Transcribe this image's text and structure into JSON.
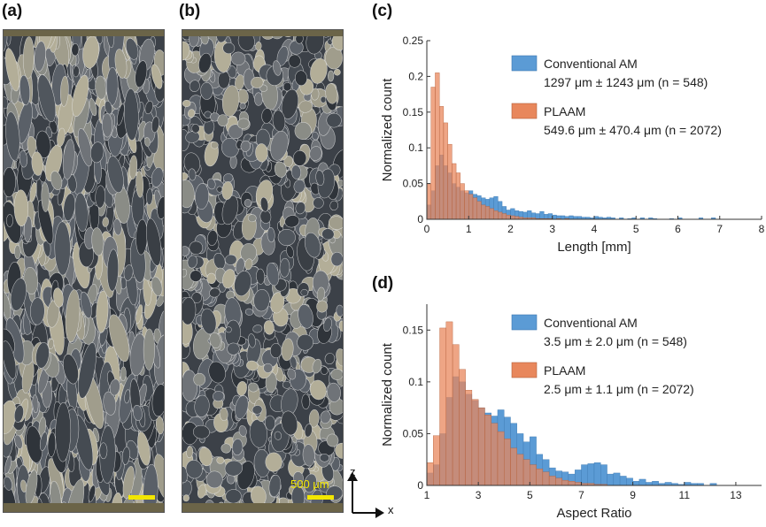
{
  "panels": {
    "a": "(a)",
    "b": "(b)",
    "c": "(c)",
    "d": "(d)"
  },
  "scale_bar": {
    "label": "500 μm",
    "color": "#f2e600"
  },
  "axes_indicator": {
    "z": "z",
    "x": "x"
  },
  "colors": {
    "conventional": "#5b9bd5",
    "plaam": "#e8875c"
  },
  "chart_data": [
    {
      "type": "bar",
      "panel": "(c)",
      "xlabel": "Length [mm]",
      "ylabel": "Normalized count",
      "xlim": [
        0,
        8
      ],
      "ylim": [
        0,
        0.25
      ],
      "xticks": [
        "0",
        "1",
        "2",
        "3",
        "4",
        "5",
        "6",
        "7",
        "8"
      ],
      "yticks": [
        "0",
        "0.05",
        "0.1",
        "0.15",
        "0.2",
        "0.25"
      ],
      "bin_start": 0,
      "bin_width": 0.1,
      "legend": {
        "position": "top-right"
      },
      "series": [
        {
          "name": "Conventional AM",
          "stats": "1297 μm ± 1243 μm (n = 548)",
          "values": [
            0.02,
            0.04,
            0.075,
            0.09,
            0.075,
            0.065,
            0.05,
            0.045,
            0.04,
            0.037,
            0.04,
            0.035,
            0.033,
            0.03,
            0.028,
            0.03,
            0.032,
            0.025,
            0.018,
            0.013,
            0.015,
            0.012,
            0.011,
            0.01,
            0.012,
            0.009,
            0.008,
            0.011,
            0.007,
            0.008,
            0.006,
            0.005,
            0.005,
            0.004,
            0.005,
            0.004,
            0.004,
            0.003,
            0.003,
            0.002,
            0.004,
            0.003,
            0.002,
            0.003,
            0.002,
            0,
            0.002,
            0,
            0.001,
            0.002,
            0,
            0.002,
            0,
            0.002,
            0.001,
            0,
            0,
            0,
            0.001,
            0,
            0.002,
            0,
            0,
            0,
            0,
            0.002,
            0,
            0,
            0.002,
            0,
            0,
            0,
            0,
            0,
            0,
            0,
            0,
            0,
            0,
            0
          ]
        },
        {
          "name": "PLAAM",
          "stats": "549.6 μm ± 470.4 μm (n = 2072)",
          "values": [
            0.05,
            0.185,
            0.205,
            0.158,
            0.135,
            0.105,
            0.078,
            0.065,
            0.05,
            0.04,
            0.035,
            0.03,
            0.025,
            0.02,
            0.018,
            0.015,
            0.012,
            0.01,
            0.008,
            0.006,
            0.005,
            0.004,
            0.003,
            0.002,
            0.002,
            0.002,
            0.001,
            0.001,
            0.001,
            0.001,
            0,
            0.001,
            0,
            0.001,
            0,
            0,
            0,
            0,
            0,
            0,
            0,
            0,
            0,
            0,
            0,
            0,
            0,
            0,
            0,
            0,
            0,
            0,
            0,
            0,
            0,
            0,
            0,
            0,
            0,
            0,
            0,
            0,
            0,
            0,
            0,
            0,
            0,
            0,
            0,
            0,
            0,
            0,
            0,
            0,
            0,
            0,
            0,
            0,
            0,
            0
          ]
        }
      ]
    },
    {
      "type": "bar",
      "panel": "(d)",
      "xlabel": "Aspect Ratio",
      "ylabel": "Normalized count",
      "xlim": [
        1,
        14
      ],
      "ylim": [
        0,
        0.175
      ],
      "xticks": [
        "1",
        "3",
        "5",
        "7",
        "9",
        "11",
        "13"
      ],
      "xtick_values": [
        1,
        3,
        5,
        7,
        9,
        11,
        13
      ],
      "yticks": [
        "0",
        "0.05",
        "0.1",
        "0.15"
      ],
      "ytick_values": [
        0,
        0.05,
        0.1,
        0.15
      ],
      "bin_start": 1,
      "bin_width": 0.25,
      "legend": {
        "position": "top-right"
      },
      "series": [
        {
          "name": "Conventional AM",
          "stats": "3.5 μm ± 2.0 μm (n = 548)",
          "values": [
            0.012,
            0.02,
            0.05,
            0.085,
            0.105,
            0.1,
            0.088,
            0.082,
            0.075,
            0.07,
            0.067,
            0.073,
            0.066,
            0.06,
            0.05,
            0.042,
            0.047,
            0.03,
            0.025,
            0.017,
            0.014,
            0.013,
            0.011,
            0.015,
            0.02,
            0.021,
            0.022,
            0.02,
            0.011,
            0.012,
            0.009,
            0.007,
            0.004,
            0.006,
            0.003,
            0.004,
            0.002,
            0.003,
            0.002,
            0.001,
            0.003,
            0.002,
            0.002,
            0,
            0.002,
            0,
            0,
            0,
            0,
            0,
            0,
            0,
            0,
            0,
            0,
            0
          ]
        },
        {
          "name": "PLAAM",
          "stats": "2.5 μm ± 1.1 μm (n = 2072)",
          "values": [
            0.022,
            0.048,
            0.152,
            0.158,
            0.136,
            0.112,
            0.092,
            0.083,
            0.075,
            0.068,
            0.06,
            0.052,
            0.045,
            0.036,
            0.03,
            0.025,
            0.02,
            0.016,
            0.013,
            0.009,
            0.007,
            0.005,
            0.004,
            0.003,
            0.002,
            0.002,
            0.001,
            0.001,
            0,
            0,
            0,
            0,
            0,
            0,
            0,
            0,
            0,
            0,
            0,
            0,
            0,
            0,
            0,
            0,
            0,
            0,
            0,
            0,
            0,
            0,
            0,
            0,
            0,
            0,
            0,
            0
          ]
        }
      ]
    }
  ]
}
